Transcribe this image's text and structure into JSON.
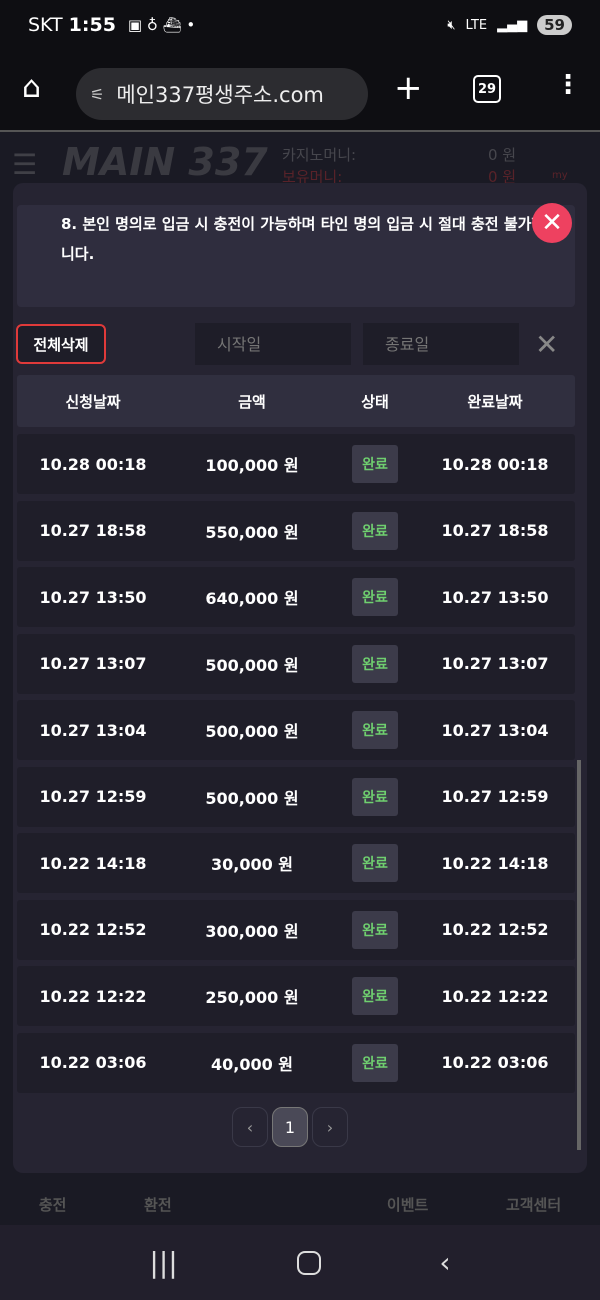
{
  "status_bar": {
    "carrier": "SKT",
    "time": "1:55",
    "battery": "59",
    "network": "LTE"
  },
  "browser": {
    "url": "메인337평생주소.com",
    "tab_count": "29"
  },
  "background_header": {
    "logo": "MAIN 337",
    "casino_money_label": "카지노머니:",
    "casino_money_value": "0 원",
    "balance_label": "보유머니:",
    "balance_value": "0 원",
    "my_label": "my"
  },
  "notice": {
    "text": "8. 본인 명의로 입금 시 충전이 가능하며 타인 명의 입금 시 절대 충전 불가합니다."
  },
  "controls": {
    "delete_all": "전체삭제",
    "start_placeholder": "시작일",
    "end_placeholder": "종료일"
  },
  "table": {
    "headers": [
      "신청날짜",
      "금액",
      "상태",
      "완료날짜"
    ],
    "rows": [
      [
        "10.28 00:18",
        "100,000 원",
        "완료",
        "10.28 00:18"
      ],
      [
        "10.27 18:58",
        "550,000 원",
        "완료",
        "10.27 18:58"
      ],
      [
        "10.27 13:50",
        "640,000 원",
        "완료",
        "10.27 13:50"
      ],
      [
        "10.27 13:07",
        "500,000 원",
        "완료",
        "10.27 13:07"
      ],
      [
        "10.27 13:04",
        "500,000 원",
        "완료",
        "10.27 13:04"
      ],
      [
        "10.27 12:59",
        "500,000 원",
        "완료",
        "10.27 12:59"
      ],
      [
        "10.22 14:18",
        "30,000 원",
        "완료",
        "10.22 14:18"
      ],
      [
        "10.22 12:52",
        "300,000 원",
        "완료",
        "10.22 12:52"
      ],
      [
        "10.22 12:22",
        "250,000 원",
        "완료",
        "10.22 12:22"
      ],
      [
        "10.22 03:06",
        "40,000 원",
        "완료",
        "10.22 03:06"
      ]
    ]
  },
  "pagination": {
    "current": "1"
  },
  "bottom_nav": [
    "충전",
    "환전",
    "이벤트",
    "고객센터"
  ],
  "colors": {
    "accent_red": "#ee4160",
    "status_green": "#6fcf6f"
  }
}
